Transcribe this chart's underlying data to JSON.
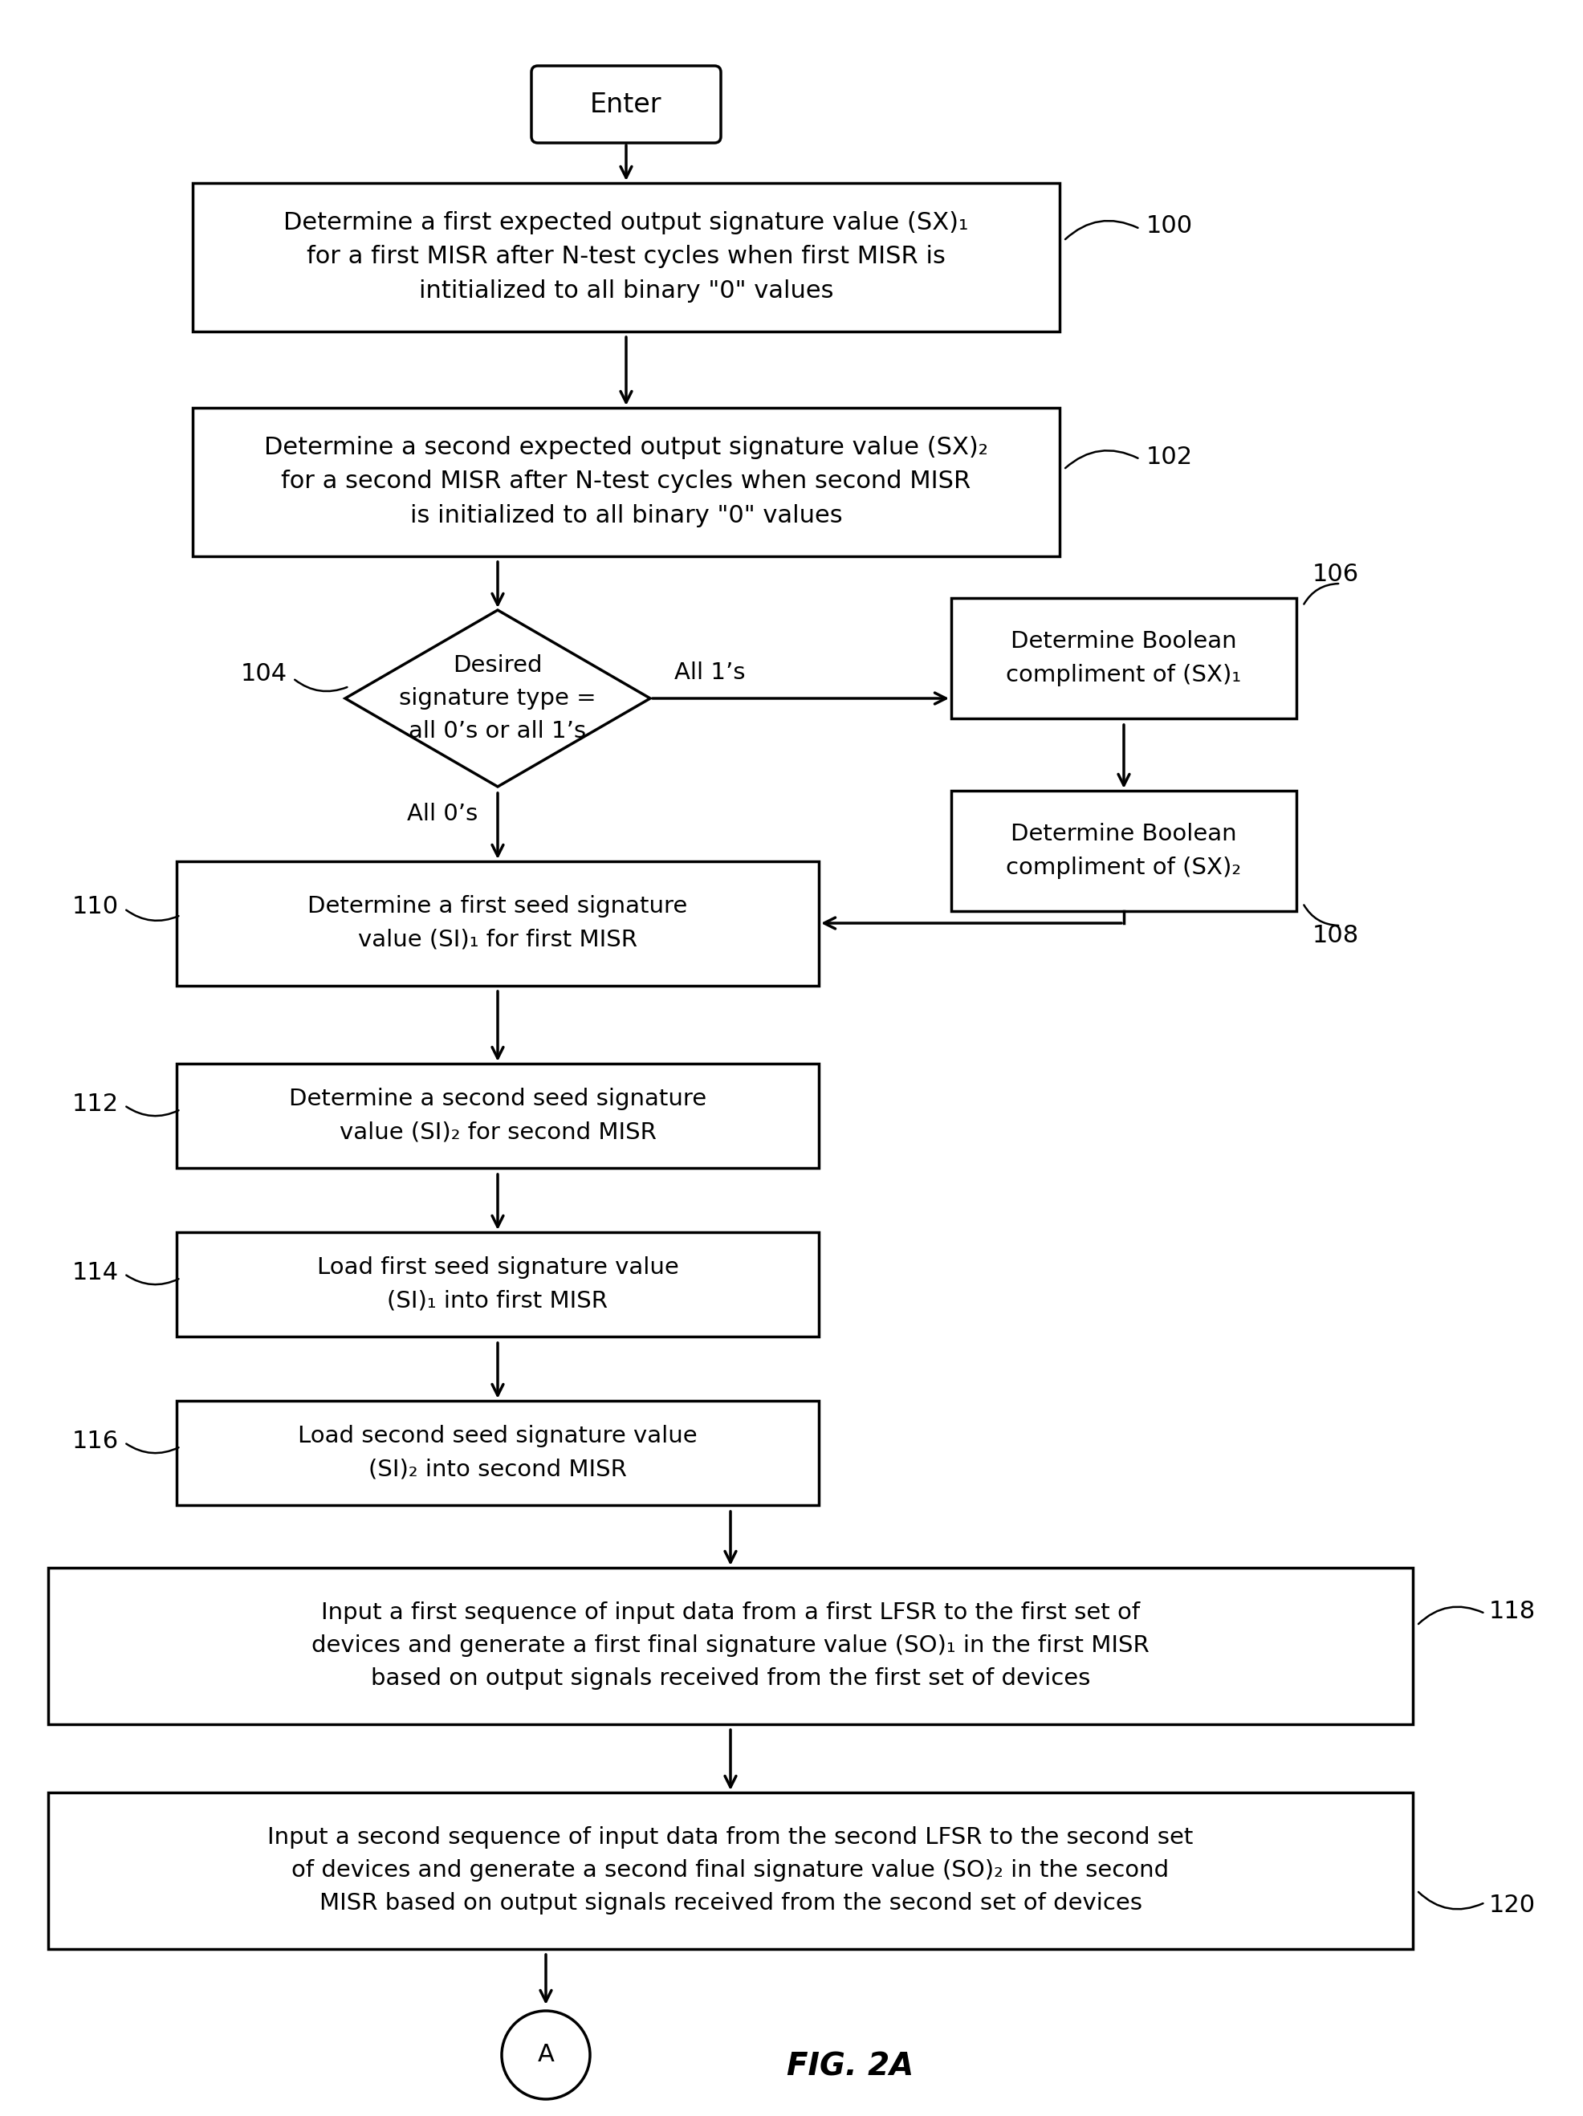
{
  "bg_color": "#ffffff",
  "fig_title": "FIG. 2A",
  "lw": 2.5,
  "enter_text": "Enter",
  "box100_text": "Determine a first expected output signature value (SX)₁\nfor a first MISR after N-test cycles when first MISR is\nintitialized to all binary \"0\" values",
  "box102_text": "Determine a second expected output signature value (SX)₂\nfor a second MISR after N-test cycles when second MISR\nis initialized to all binary \"0\" values",
  "diamond_text": "Desired\nsignature type =\nall 0’s or all 1’s",
  "box106_text": "Determine Boolean\ncompliment of (SX)₁",
  "box108_text": "Determine Boolean\ncompliment of (SX)₂",
  "box110_text": "Determine a first seed signature\nvalue (SI)₁ for first MISR",
  "box112_text": "Determine a second seed signature\nvalue (SI)₂ for second MISR",
  "box114_text": "Load first seed signature value\n(SI)₁ into first MISR",
  "box116_text": "Load second seed signature value\n(SI)₂ into second MISR",
  "box118_text": "Input a first sequence of input data from a first LFSR to the first set of\ndevices and generate a first final signature value (SO)₁ in the first MISR\nbased on output signals received from the first set of devices",
  "box120_text": "Input a second sequence of input data from the second LFSR to the second set\nof devices and generate a second final signature value (SO)₂ in the second\nMISR based on output signals received from the second set of devices",
  "all1s_label": "All 1’s",
  "all0s_label": "All 0’s",
  "ref100": "100",
  "ref102": "102",
  "ref104": "104",
  "ref106": "106",
  "ref108": "108",
  "ref110": "110",
  "ref112": "112",
  "ref114": "114",
  "ref116": "116",
  "ref118": "118",
  "ref120": "120",
  "circle_label": "A"
}
